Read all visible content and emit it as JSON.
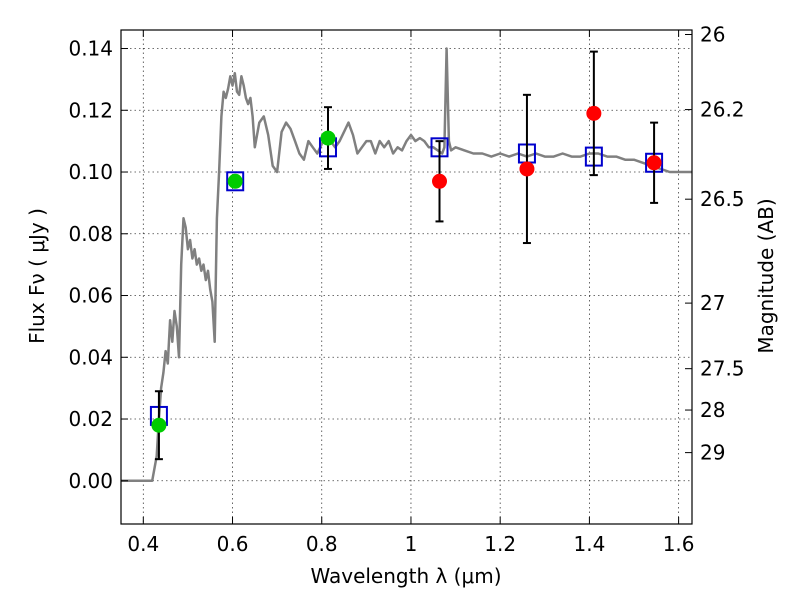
{
  "chart_data": {
    "type": "scatter",
    "xlabel": "Wavelength  λ (μm)",
    "ylabel": "Flux  Fν  ( μJy )",
    "y2label": "Magnitude (AB)",
    "xlim": [
      0.35,
      1.63
    ],
    "ylim": [
      -0.014,
      0.146
    ],
    "x_ticks": [
      0.4,
      0.6,
      0.8,
      1.0,
      1.2,
      1.4,
      1.6
    ],
    "x_tick_labels": [
      "0.4",
      "0.6",
      "0.8",
      "1",
      "1.2",
      "1.4",
      "1.6"
    ],
    "y_ticks": [
      0.0,
      0.02,
      0.04,
      0.06,
      0.08,
      0.1,
      0.12,
      0.14
    ],
    "y_tick_labels": [
      "0.00",
      "0.02",
      "0.04",
      "0.06",
      "0.08",
      "0.10",
      "0.12",
      "0.14"
    ],
    "magnitude_ticks": [
      {
        "label": "26",
        "value": 26
      },
      {
        "label": "26.2",
        "value": 26.2
      },
      {
        "label": "26.5",
        "value": 26.5
      },
      {
        "label": "27",
        "value": 27
      },
      {
        "label": "27.5",
        "value": 27.5
      },
      {
        "label": "28",
        "value": 28
      },
      {
        "label": "29",
        "value": 29
      }
    ],
    "grid": true,
    "series": [
      {
        "kind": "line",
        "color": "#808080",
        "points": [
          [
            0.35,
            0.0
          ],
          [
            0.4,
            0.0
          ],
          [
            0.42,
            0.0
          ],
          [
            0.43,
            0.008
          ],
          [
            0.435,
            0.02
          ],
          [
            0.44,
            0.03
          ],
          [
            0.445,
            0.035
          ],
          [
            0.45,
            0.042
          ],
          [
            0.455,
            0.038
          ],
          [
            0.46,
            0.052
          ],
          [
            0.465,
            0.045
          ],
          [
            0.47,
            0.055
          ],
          [
            0.475,
            0.05
          ],
          [
            0.48,
            0.04
          ],
          [
            0.485,
            0.07
          ],
          [
            0.49,
            0.085
          ],
          [
            0.495,
            0.082
          ],
          [
            0.5,
            0.075
          ],
          [
            0.505,
            0.078
          ],
          [
            0.51,
            0.072
          ],
          [
            0.515,
            0.075
          ],
          [
            0.52,
            0.07
          ],
          [
            0.525,
            0.072
          ],
          [
            0.53,
            0.068
          ],
          [
            0.535,
            0.07
          ],
          [
            0.54,
            0.065
          ],
          [
            0.545,
            0.068
          ],
          [
            0.55,
            0.062
          ],
          [
            0.555,
            0.058
          ],
          [
            0.56,
            0.045
          ],
          [
            0.565,
            0.085
          ],
          [
            0.57,
            0.1
          ],
          [
            0.575,
            0.118
          ],
          [
            0.58,
            0.126
          ],
          [
            0.585,
            0.124
          ],
          [
            0.59,
            0.127
          ],
          [
            0.595,
            0.131
          ],
          [
            0.6,
            0.128
          ],
          [
            0.605,
            0.132
          ],
          [
            0.61,
            0.126
          ],
          [
            0.615,
            0.125
          ],
          [
            0.62,
            0.131
          ],
          [
            0.625,
            0.128
          ],
          [
            0.63,
            0.124
          ],
          [
            0.635,
            0.122
          ],
          [
            0.64,
            0.124
          ],
          [
            0.645,
            0.118
          ],
          [
            0.65,
            0.108
          ],
          [
            0.66,
            0.116
          ],
          [
            0.67,
            0.118
          ],
          [
            0.68,
            0.112
          ],
          [
            0.69,
            0.102
          ],
          [
            0.7,
            0.1
          ],
          [
            0.71,
            0.113
          ],
          [
            0.72,
            0.116
          ],
          [
            0.73,
            0.114
          ],
          [
            0.74,
            0.11
          ],
          [
            0.75,
            0.106
          ],
          [
            0.76,
            0.104
          ],
          [
            0.77,
            0.11
          ],
          [
            0.78,
            0.108
          ],
          [
            0.79,
            0.106
          ],
          [
            0.8,
            0.109
          ],
          [
            0.81,
            0.112
          ],
          [
            0.82,
            0.11
          ],
          [
            0.83,
            0.108
          ],
          [
            0.84,
            0.11
          ],
          [
            0.85,
            0.113
          ],
          [
            0.86,
            0.116
          ],
          [
            0.87,
            0.112
          ],
          [
            0.88,
            0.106
          ],
          [
            0.89,
            0.108
          ],
          [
            0.9,
            0.11
          ],
          [
            0.91,
            0.11
          ],
          [
            0.92,
            0.106
          ],
          [
            0.93,
            0.11
          ],
          [
            0.94,
            0.108
          ],
          [
            0.95,
            0.11
          ],
          [
            0.96,
            0.106
          ],
          [
            0.97,
            0.108
          ],
          [
            0.98,
            0.107
          ],
          [
            0.99,
            0.11
          ],
          [
            1.0,
            0.112
          ],
          [
            1.01,
            0.11
          ],
          [
            1.02,
            0.111
          ],
          [
            1.03,
            0.11
          ],
          [
            1.04,
            0.108
          ],
          [
            1.05,
            0.108
          ],
          [
            1.06,
            0.107
          ],
          [
            1.07,
            0.106
          ],
          [
            1.075,
            0.108
          ],
          [
            1.08,
            0.14
          ],
          [
            1.085,
            0.11
          ],
          [
            1.09,
            0.107
          ],
          [
            1.1,
            0.108
          ],
          [
            1.12,
            0.107
          ],
          [
            1.14,
            0.106
          ],
          [
            1.16,
            0.106
          ],
          [
            1.18,
            0.105
          ],
          [
            1.2,
            0.106
          ],
          [
            1.22,
            0.105
          ],
          [
            1.24,
            0.106
          ],
          [
            1.26,
            0.105
          ],
          [
            1.28,
            0.106
          ],
          [
            1.3,
            0.105
          ],
          [
            1.32,
            0.105
          ],
          [
            1.34,
            0.106
          ],
          [
            1.36,
            0.105
          ],
          [
            1.38,
            0.105
          ],
          [
            1.4,
            0.106
          ],
          [
            1.42,
            0.106
          ],
          [
            1.44,
            0.105
          ],
          [
            1.46,
            0.105
          ],
          [
            1.48,
            0.104
          ],
          [
            1.5,
            0.104
          ],
          [
            1.52,
            0.103
          ],
          [
            1.54,
            0.102
          ],
          [
            1.56,
            0.101
          ],
          [
            1.58,
            0.1
          ],
          [
            1.6,
            0.1
          ],
          [
            1.63,
            0.1
          ]
        ]
      },
      {
        "kind": "model_photometry",
        "color": "#0000cc",
        "points": [
          {
            "x": 0.435,
            "y": 0.021
          },
          {
            "x": 0.606,
            "y": 0.097
          },
          {
            "x": 0.814,
            "y": 0.108
          },
          {
            "x": 1.064,
            "y": 0.108
          },
          {
            "x": 1.26,
            "y": 0.106
          },
          {
            "x": 1.41,
            "y": 0.105
          },
          {
            "x": 1.545,
            "y": 0.103
          }
        ]
      },
      {
        "kind": "observed_optical",
        "color": "#00cc00",
        "points": [
          {
            "x": 0.435,
            "y": 0.018,
            "err": 0.011
          },
          {
            "x": 0.606,
            "y": 0.097,
            "err": 0.0
          },
          {
            "x": 0.814,
            "y": 0.111,
            "err": 0.01
          }
        ]
      },
      {
        "kind": "observed_nir",
        "color": "#ff0000",
        "points": [
          {
            "x": 1.064,
            "y": 0.097,
            "err": 0.013
          },
          {
            "x": 1.26,
            "y": 0.101,
            "err": 0.024
          },
          {
            "x": 1.41,
            "y": 0.119,
            "err": 0.02
          },
          {
            "x": 1.545,
            "y": 0.103,
            "err": 0.013
          }
        ]
      }
    ]
  }
}
